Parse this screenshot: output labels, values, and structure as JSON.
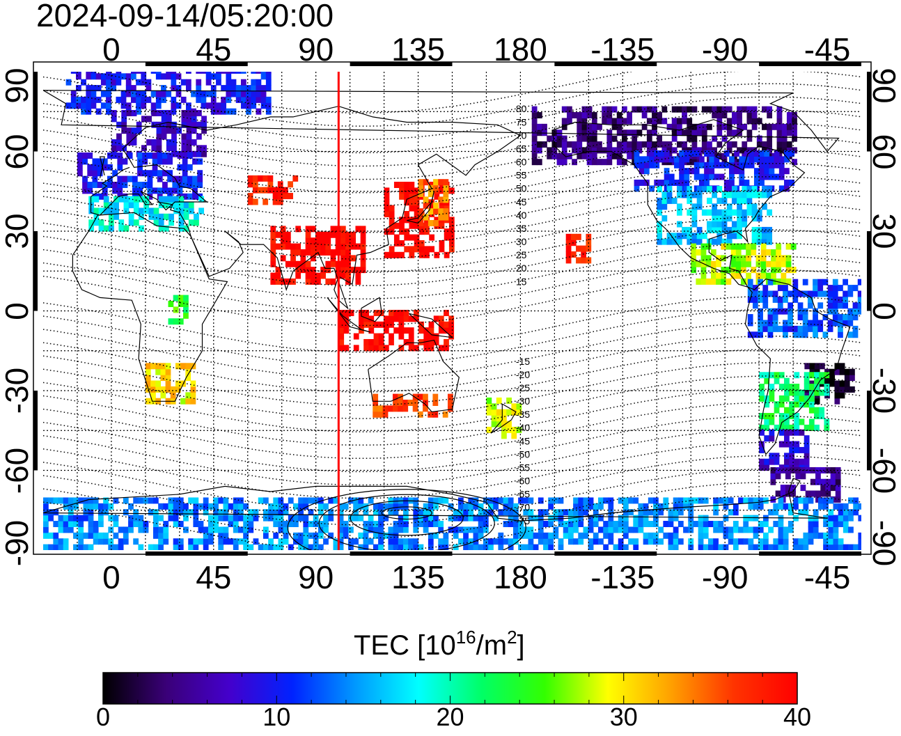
{
  "timestamp": "2024-09-14/05:20:00",
  "colors": {
    "frame": "#000000",
    "grid": "#000000",
    "terminator_line": "#ff0000",
    "background": "#ffffff",
    "colorbar_stops": [
      "#000000",
      "#3a0078",
      "#4400cc",
      "#0022ff",
      "#0099ff",
      "#00ffff",
      "#00ff66",
      "#33ff00",
      "#ffff00",
      "#ffa000",
      "#ff3300",
      "#ff0000"
    ]
  },
  "map": {
    "projection": "equirectangular",
    "central_longitude_start": -30,
    "lon_range": [
      -30,
      330
    ],
    "lat_range": [
      -90,
      90
    ],
    "top_ticks": [
      "0",
      "45",
      "90",
      "135",
      "180",
      "-135",
      "-90",
      "-45"
    ],
    "bottom_ticks": [
      "0",
      "45",
      "90",
      "135",
      "180",
      "-135",
      "-90",
      "-45"
    ],
    "tick_longitudes": [
      0,
      45,
      90,
      135,
      180,
      225,
      270,
      315
    ],
    "left_ticks": [
      "90",
      "60",
      "30",
      "0",
      "-30",
      "-60",
      "-90"
    ],
    "right_ticks": [
      "90",
      "60",
      "30",
      "0",
      "-30",
      "-60",
      "-90"
    ],
    "tick_latitudes": [
      90,
      60,
      30,
      0,
      -30,
      -60,
      -90
    ],
    "grid_spacing_deg": 15,
    "terminator_longitude": 100,
    "magnetic_latitude_labels": [
      "80",
      "75",
      "70",
      "65",
      "60",
      "55",
      "50",
      "45",
      "40",
      "35",
      "30",
      "25",
      "20",
      "15",
      "-15",
      "-20",
      "-25",
      "-30",
      "-35",
      "-40",
      "-45",
      "-50",
      "-55",
      "-60",
      "-65",
      "-70",
      "-75"
    ]
  },
  "tec_regions": [
    {
      "name": "arctic-europe",
      "lon": [
        -20,
        70
      ],
      "lat": [
        74,
        90
      ],
      "tec": 10
    },
    {
      "name": "scandinavia",
      "lon": [
        0,
        40
      ],
      "lat": [
        58,
        74
      ],
      "tec": 7
    },
    {
      "name": "europe",
      "lon": [
        -15,
        40
      ],
      "lat": [
        42,
        58
      ],
      "tec": 10
    },
    {
      "name": "mediterranean",
      "lon": [
        -10,
        40
      ],
      "lat": [
        30,
        42
      ],
      "tec": 18
    },
    {
      "name": "central-asia",
      "lon": [
        60,
        80
      ],
      "lat": [
        40,
        50
      ],
      "tec": 38
    },
    {
      "name": "east-asia",
      "lon": [
        120,
        150
      ],
      "lat": [
        20,
        48
      ],
      "tec": 40
    },
    {
      "name": "japan",
      "lon": [
        135,
        148
      ],
      "lat": [
        32,
        48
      ],
      "tec": 34
    },
    {
      "name": "india-se-asia",
      "lon": [
        70,
        110
      ],
      "lat": [
        10,
        30
      ],
      "tec": 40
    },
    {
      "name": "indonesia",
      "lon": [
        100,
        150
      ],
      "lat": [
        -15,
        0
      ],
      "tec": 40
    },
    {
      "name": "africa-central",
      "lon": [
        25,
        35
      ],
      "lat": [
        -5,
        5
      ],
      "tec": 24
    },
    {
      "name": "southern-africa",
      "lon": [
        15,
        35
      ],
      "lat": [
        -35,
        -20
      ],
      "tec": 30
    },
    {
      "name": "australia-south",
      "lon": [
        115,
        150
      ],
      "lat": [
        -40,
        -32
      ],
      "tec": 36
    },
    {
      "name": "new-zealand",
      "lon": [
        165,
        180
      ],
      "lat": [
        -48,
        -34
      ],
      "tec": 28
    },
    {
      "name": "alaska-canada",
      "lon": [
        185,
        300
      ],
      "lat": [
        55,
        75
      ],
      "tec": 4
    },
    {
      "name": "canada-south",
      "lon": [
        230,
        300
      ],
      "lat": [
        45,
        60
      ],
      "tec": 10
    },
    {
      "name": "north-america",
      "lon": [
        240,
        290
      ],
      "lat": [
        25,
        45
      ],
      "tec": 16
    },
    {
      "name": "central-america",
      "lon": [
        255,
        300
      ],
      "lat": [
        10,
        25
      ],
      "tec": 28
    },
    {
      "name": "south-america-north",
      "lon": [
        280,
        330
      ],
      "lat": [
        -10,
        10
      ],
      "tec": 12
    },
    {
      "name": "brazil-south",
      "lon": [
        305,
        325
      ],
      "lat": [
        -35,
        -20
      ],
      "tec": 1
    },
    {
      "name": "south-america-mid",
      "lon": [
        285,
        315
      ],
      "lat": [
        -45,
        -25
      ],
      "tec": 22
    },
    {
      "name": "patagonia",
      "lon": [
        285,
        305
      ],
      "lat": [
        -60,
        -45
      ],
      "tec": 8
    },
    {
      "name": "antarctic-peninsula",
      "lon": [
        290,
        320
      ],
      "lat": [
        -72,
        -60
      ],
      "tec": 5
    },
    {
      "name": "hawaii",
      "lon": [
        200,
        210
      ],
      "lat": [
        18,
        27
      ],
      "tec": 38
    },
    {
      "name": "antarctica",
      "lon": [
        -30,
        330
      ],
      "lat": [
        -90,
        -72
      ],
      "tec": 14
    }
  ],
  "colorbar": {
    "title_prefix": "TEC  [10",
    "title_exp": "16",
    "title_mid": "/m",
    "title_exp2": "2",
    "title_suffix": "]",
    "min": 0,
    "max": 40,
    "tick_values": [
      0,
      10,
      20,
      30,
      40
    ],
    "tick_labels": [
      "0",
      "10",
      "20",
      "30",
      "40"
    ]
  }
}
